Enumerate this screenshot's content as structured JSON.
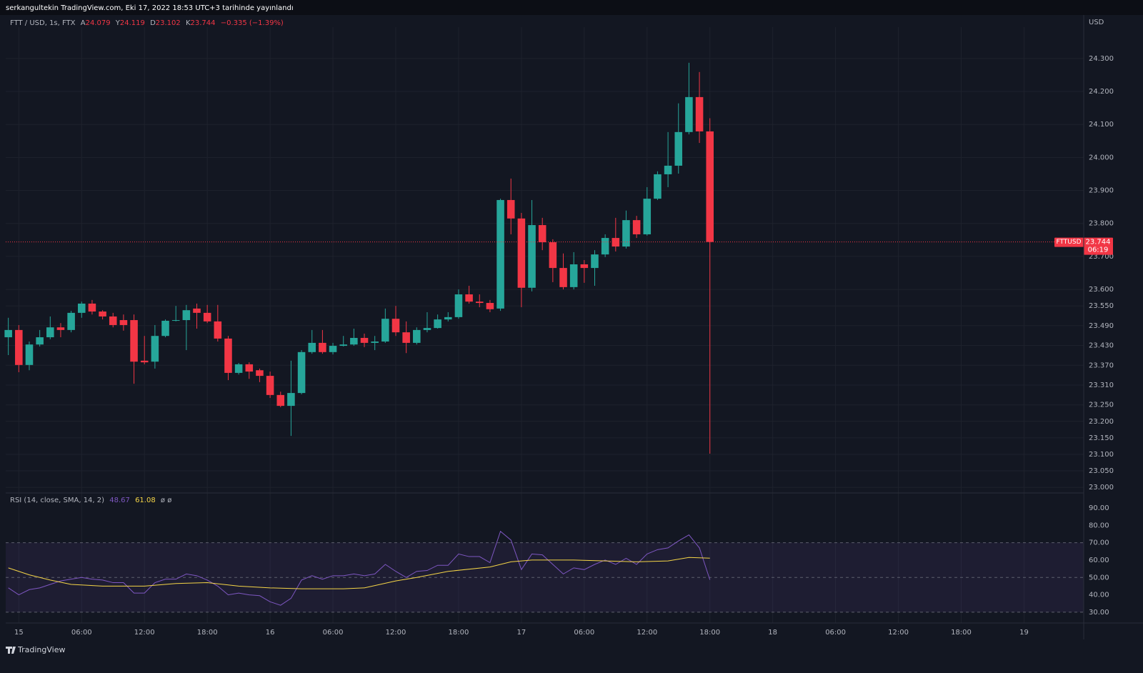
{
  "header": {
    "publisher": "serkangultekin TradingView.com, Eki 17, 2022 18:53 UTC+3 tarihinde yayınlandı"
  },
  "footer": {
    "brand": "TradingView"
  },
  "chart_data": [
    {
      "type": "candlestick",
      "title": "FTT / USD, 1s, FTX",
      "ohlc": [
        {
          "label": "A",
          "value": "24.079"
        },
        {
          "label": "Y",
          "value": "24.119"
        },
        {
          "label": "D",
          "value": "23.102"
        },
        {
          "label": "K",
          "value": "23.744"
        }
      ],
      "change": "−0.335 (−1.39%)",
      "currency": "USD",
      "last_price": {
        "symbol": "FTTUSD",
        "price": "23.744",
        "countdown": "06:19",
        "value": 23.744
      },
      "up_color": "#26a69a",
      "down_color": "#f23645",
      "grid": true,
      "x": [
        -1,
        0,
        1,
        2,
        3,
        4,
        5,
        6,
        7,
        8,
        9,
        10,
        11,
        12,
        13,
        14,
        15,
        16,
        17,
        18,
        19,
        20,
        21,
        22,
        23,
        24,
        25,
        26,
        27,
        28,
        29,
        30,
        31,
        32,
        33,
        34,
        35,
        36,
        37,
        38,
        39,
        40,
        41,
        42,
        43,
        44,
        45,
        46,
        47,
        48,
        49,
        50,
        51,
        52,
        53,
        54,
        55,
        56,
        57,
        58,
        59,
        60,
        61,
        62,
        63,
        64,
        65,
        66
      ],
      "open": [
        23.455,
        23.477,
        23.371,
        23.433,
        23.455,
        23.485,
        23.477,
        23.529,
        23.557,
        23.533,
        23.518,
        23.507,
        23.507,
        23.384,
        23.381,
        23.459,
        23.505,
        23.507,
        23.542,
        23.529,
        23.503,
        23.451,
        23.347,
        23.373,
        23.355,
        23.338,
        23.28,
        23.247,
        23.286,
        23.41,
        23.438,
        23.41,
        23.429,
        23.433,
        23.453,
        23.438,
        23.442,
        23.511,
        23.47,
        23.438,
        23.477,
        23.483,
        23.509,
        23.516,
        23.585,
        23.563,
        23.559,
        23.542,
        23.871,
        23.815,
        23.605,
        23.795,
        23.743,
        23.665,
        23.607,
        23.676,
        23.665,
        23.706,
        23.756,
        23.73,
        23.81,
        23.767,
        23.875,
        23.949,
        23.975,
        24.077,
        24.183,
        24.079
      ],
      "high": [
        23.514,
        23.492,
        23.442,
        23.477,
        23.518,
        23.498,
        23.535,
        23.563,
        23.568,
        23.537,
        23.529,
        23.524,
        23.524,
        23.459,
        23.492,
        23.509,
        23.55,
        23.553,
        23.557,
        23.553,
        23.553,
        23.459,
        23.377,
        23.379,
        23.36,
        23.351,
        23.29,
        23.384,
        23.416,
        23.477,
        23.477,
        23.438,
        23.459,
        23.481,
        23.466,
        23.459,
        23.542,
        23.55,
        23.503,
        23.485,
        23.531,
        23.524,
        23.531,
        23.6,
        23.611,
        23.585,
        23.568,
        23.875,
        23.936,
        23.832,
        23.871,
        23.817,
        23.752,
        23.709,
        23.713,
        23.689,
        23.719,
        23.767,
        23.817,
        23.839,
        23.823,
        23.91,
        23.958,
        24.077,
        24.164,
        24.287,
        24.259,
        24.119
      ],
      "low": [
        23.401,
        23.349,
        23.355,
        23.427,
        23.449,
        23.455,
        23.47,
        23.514,
        23.524,
        23.509,
        23.485,
        23.475,
        23.314,
        23.373,
        23.36,
        23.455,
        23.503,
        23.416,
        23.481,
        23.498,
        23.442,
        23.325,
        23.342,
        23.329,
        23.319,
        23.271,
        23.243,
        23.156,
        23.282,
        23.405,
        23.405,
        23.403,
        23.427,
        23.429,
        23.425,
        23.416,
        23.438,
        23.459,
        23.407,
        23.433,
        23.47,
        23.481,
        23.503,
        23.511,
        23.557,
        23.546,
        23.531,
        23.535,
        23.767,
        23.546,
        23.594,
        23.719,
        23.622,
        23.6,
        23.6,
        23.62,
        23.611,
        23.698,
        23.715,
        23.724,
        23.756,
        23.763,
        23.871,
        23.91,
        23.951,
        24.07,
        24.044,
        23.102
      ],
      "close": [
        23.477,
        23.371,
        23.433,
        23.455,
        23.485,
        23.477,
        23.529,
        23.557,
        23.533,
        23.518,
        23.492,
        23.492,
        23.381,
        23.379,
        23.459,
        23.505,
        23.507,
        23.537,
        23.529,
        23.503,
        23.451,
        23.347,
        23.373,
        23.351,
        23.338,
        23.28,
        23.247,
        23.286,
        23.41,
        23.438,
        23.41,
        23.429,
        23.433,
        23.453,
        23.438,
        23.442,
        23.511,
        23.47,
        23.438,
        23.477,
        23.483,
        23.509,
        23.516,
        23.585,
        23.563,
        23.559,
        23.54,
        23.871,
        23.815,
        23.605,
        23.795,
        23.743,
        23.665,
        23.607,
        23.676,
        23.665,
        23.706,
        23.756,
        23.73,
        23.81,
        23.767,
        23.875,
        23.949,
        23.975,
        24.077,
        24.183,
        24.079,
        23.744
      ],
      "xlim": [
        -1.25,
        101.7
      ],
      "xticks": [
        {
          "value": 0,
          "label": "15"
        },
        {
          "value": 6,
          "label": "06:00"
        },
        {
          "value": 12,
          "label": "12:00"
        },
        {
          "value": 18,
          "label": "18:00"
        },
        {
          "value": 24,
          "label": "16"
        },
        {
          "value": 30,
          "label": "06:00"
        },
        {
          "value": 36,
          "label": "12:00"
        },
        {
          "value": 42,
          "label": "18:00"
        },
        {
          "value": 48,
          "label": "17"
        },
        {
          "value": 54,
          "label": "06:00"
        },
        {
          "value": 60,
          "label": "12:00"
        },
        {
          "value": 66,
          "label": "18:00"
        },
        {
          "value": 72,
          "label": "18"
        },
        {
          "value": 78,
          "label": "06:00"
        },
        {
          "value": 84,
          "label": "12:00"
        },
        {
          "value": 90,
          "label": "18:00"
        },
        {
          "value": 96,
          "label": "19"
        }
      ],
      "ylim": [
        22.983,
        24.395
      ],
      "yticks": [
        {
          "value": 23.0,
          "label": "23.000"
        },
        {
          "value": 23.05,
          "label": "23.050"
        },
        {
          "value": 23.1,
          "label": "23.100"
        },
        {
          "value": 23.15,
          "label": "23.150"
        },
        {
          "value": 23.2,
          "label": "23.200"
        },
        {
          "value": 23.25,
          "label": "23.250"
        },
        {
          "value": 23.31,
          "label": "23.310"
        },
        {
          "value": 23.37,
          "label": "23.370"
        },
        {
          "value": 23.43,
          "label": "23.430"
        },
        {
          "value": 23.49,
          "label": "23.490"
        },
        {
          "value": 23.55,
          "label": "23.550"
        },
        {
          "value": 23.6,
          "label": "23.600"
        },
        {
          "value": 23.7,
          "label": "23.700"
        },
        {
          "value": 23.8,
          "label": "23.800"
        },
        {
          "value": 23.9,
          "label": "23.900"
        },
        {
          "value": 24.0,
          "label": "24.000"
        },
        {
          "value": 24.1,
          "label": "24.100"
        },
        {
          "value": 24.2,
          "label": "24.200"
        },
        {
          "value": 24.3,
          "label": "24.300"
        }
      ]
    },
    {
      "type": "line",
      "title": "RSI (14, close, SMA, 14, 2)",
      "extras": "ø ø",
      "band_fill": "rgba(126,87,194,0.10)",
      "bands": [
        30,
        50,
        70
      ],
      "series": [
        {
          "color": "#7e57c2",
          "last_label": "48.67",
          "x": [
            -1,
            0,
            1,
            2,
            3,
            4,
            5,
            6,
            7,
            8,
            9,
            10,
            11,
            12,
            13,
            14,
            15,
            16,
            17,
            18,
            19,
            20,
            21,
            22,
            23,
            24,
            25,
            26,
            27,
            28,
            29,
            30,
            31,
            32,
            33,
            34,
            35,
            36,
            37,
            38,
            39,
            40,
            41,
            42,
            43,
            44,
            45,
            46,
            47,
            48,
            49,
            50,
            51,
            52,
            53,
            54,
            55,
            56,
            57,
            58,
            59,
            60,
            61,
            62,
            63,
            64,
            65,
            66
          ],
          "values": [
            44,
            40,
            43,
            44,
            46,
            48,
            49,
            50,
            49,
            48.5,
            47,
            47,
            41,
            41,
            47,
            49,
            49,
            52,
            51,
            48.5,
            45,
            40,
            41,
            40,
            39.5,
            36,
            34,
            38,
            48.5,
            51,
            49,
            51,
            51,
            52,
            51,
            52,
            57.5,
            53.5,
            50,
            53.5,
            54,
            57,
            57,
            63.5,
            62,
            62,
            58.5,
            76.5,
            71.5,
            54.5,
            63.5,
            63,
            57.5,
            52,
            55.5,
            54.5,
            57.5,
            60,
            57.5,
            61,
            57.5,
            63.5,
            66,
            67,
            71,
            74.5,
            67,
            48.67
          ]
        },
        {
          "color": "#f5d547",
          "last_label": "61.08",
          "x": [
            -1,
            1,
            3,
            5,
            8,
            12,
            15,
            18,
            21,
            24,
            27,
            31,
            33,
            36,
            38,
            41,
            45,
            47,
            49,
            53,
            56,
            59,
            62,
            64,
            66
          ],
          "values": [
            55.5,
            51.5,
            48.5,
            46,
            45,
            45,
            46.5,
            47,
            45,
            44,
            43.5,
            43.5,
            44,
            48,
            50,
            53.5,
            56,
            59,
            60,
            60,
            59.5,
            59,
            59.5,
            61.5,
            61.08
          ]
        }
      ],
      "ylim": [
        23.8,
        98.6
      ],
      "yticks": [
        {
          "value": 30,
          "label": "30.00"
        },
        {
          "value": 40,
          "label": "40.00"
        },
        {
          "value": 50,
          "label": "50.00"
        },
        {
          "value": 60,
          "label": "60.00"
        },
        {
          "value": 70,
          "label": "70.00"
        },
        {
          "value": 80,
          "label": "80.00"
        },
        {
          "value": 90,
          "label": "90.00"
        }
      ]
    }
  ]
}
